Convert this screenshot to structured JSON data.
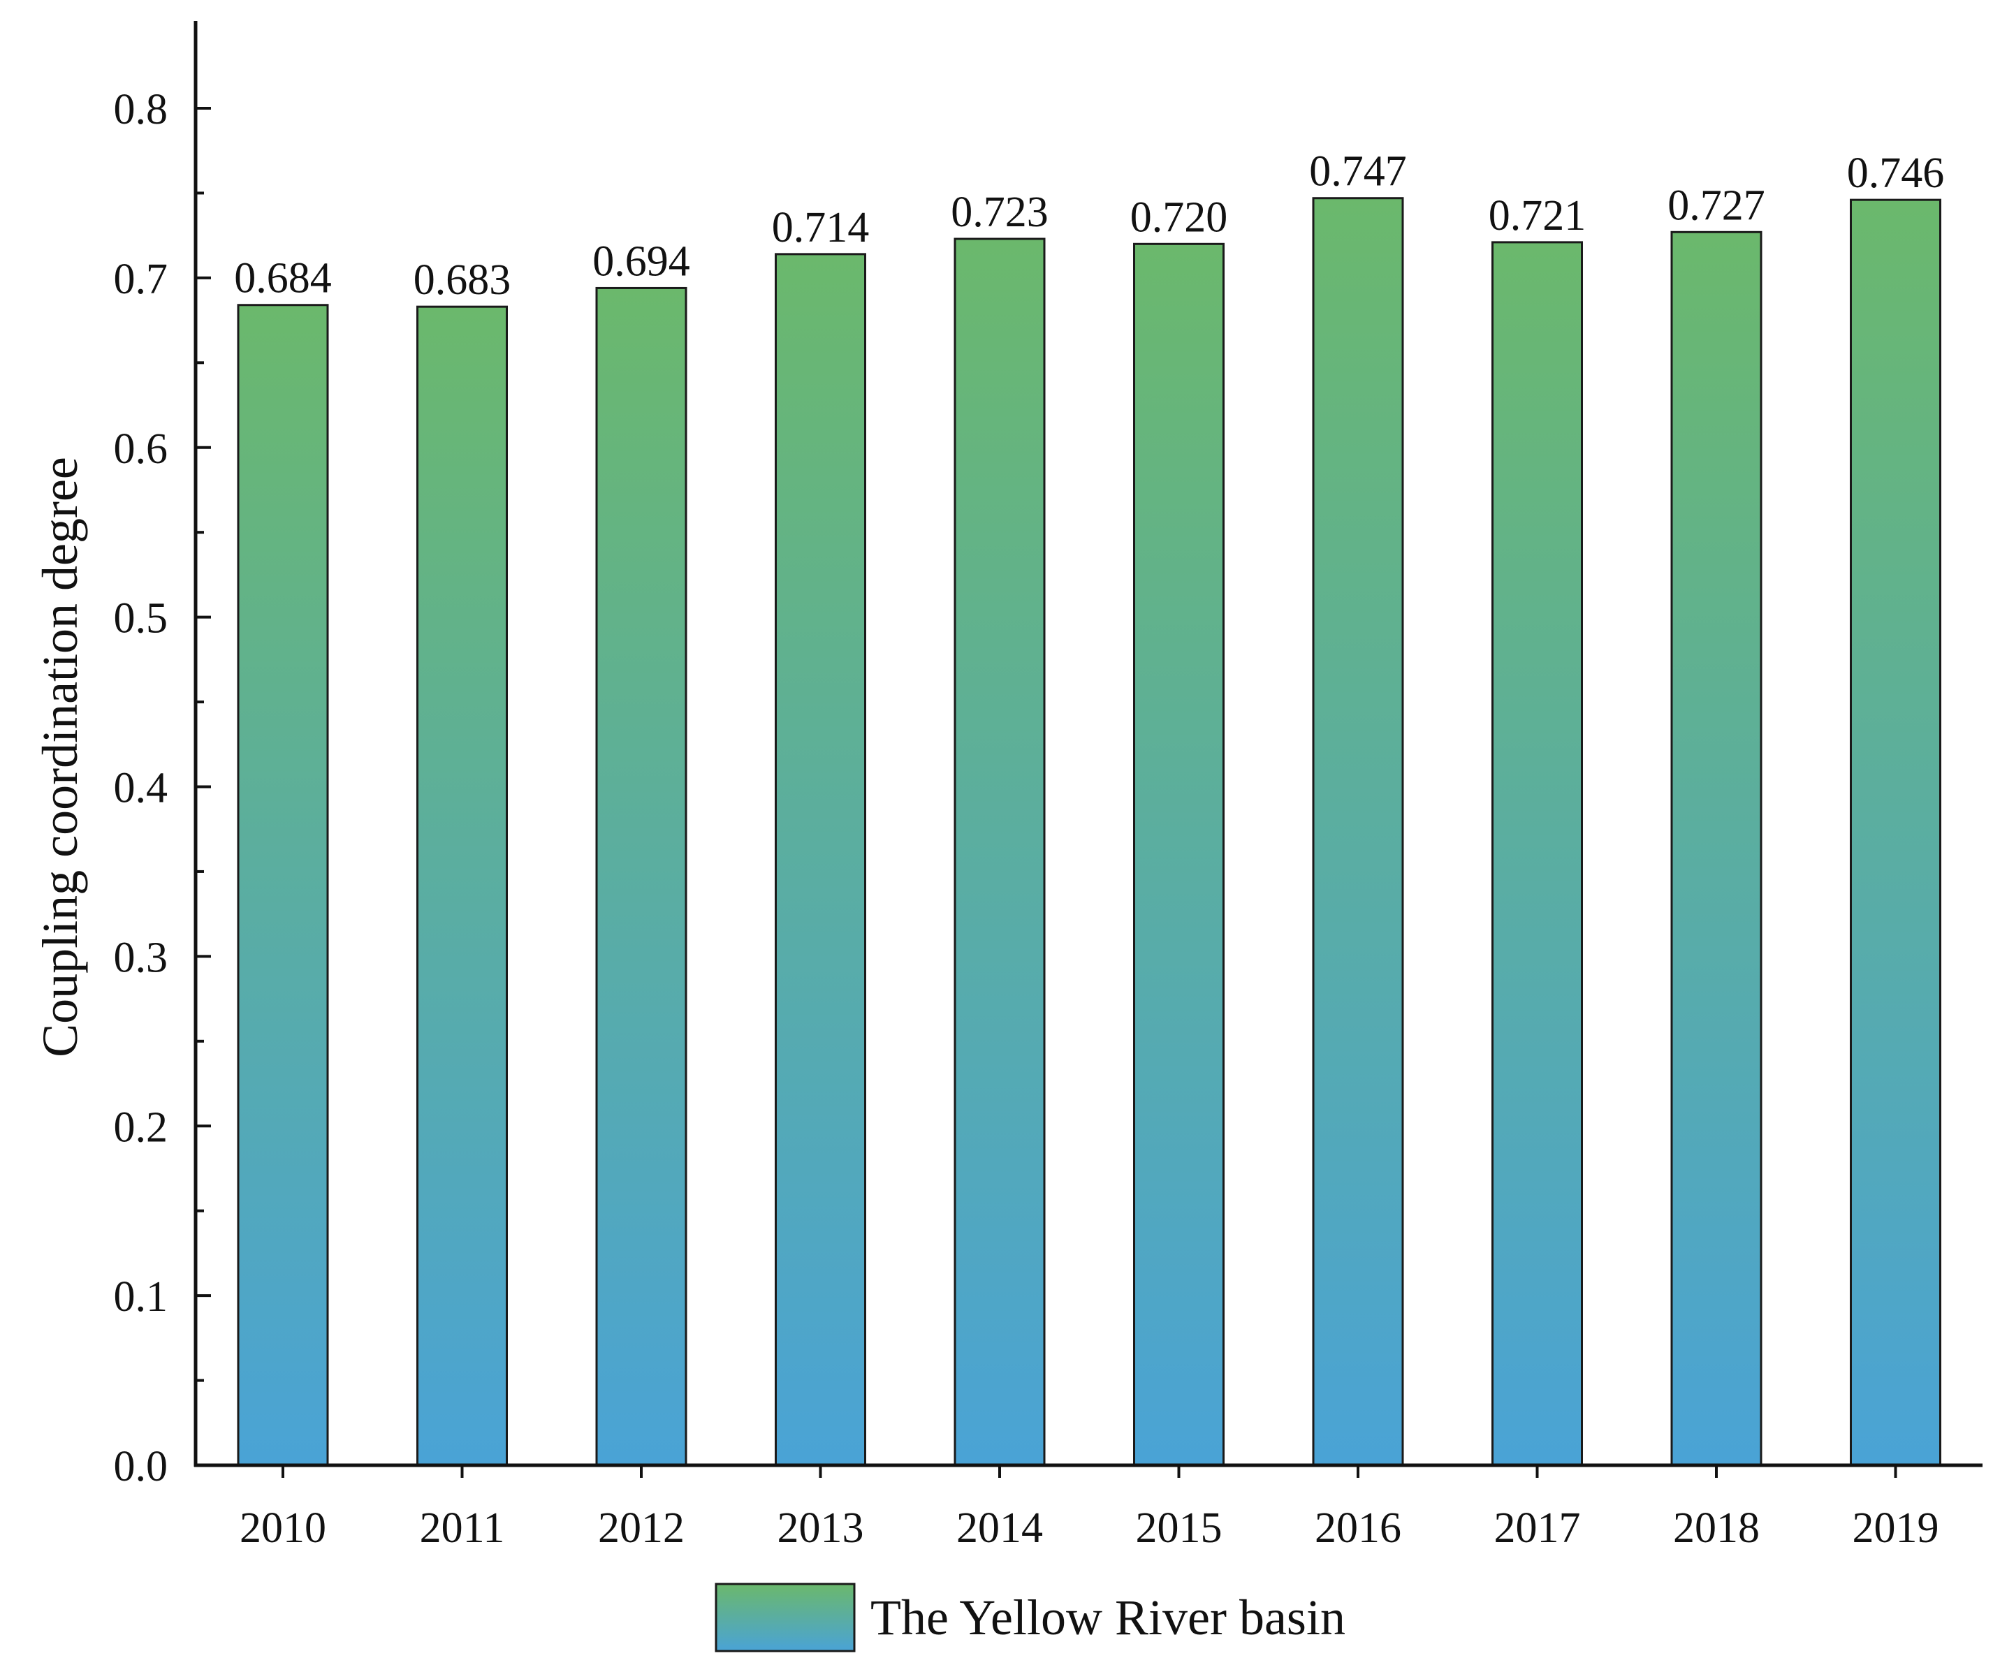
{
  "chart_data": {
    "type": "bar",
    "title": "",
    "xlabel": "",
    "ylabel": "Coupling coordination degree",
    "ylim": [
      0,
      0.85
    ],
    "yticks": [
      "0.0",
      "0.1",
      "0.2",
      "0.3",
      "0.4",
      "0.5",
      "0.6",
      "0.7",
      "0.8"
    ],
    "categories": [
      "2010",
      "2011",
      "2012",
      "2013",
      "2014",
      "2015",
      "2016",
      "2017",
      "2018",
      "2019"
    ],
    "series": [
      {
        "name": "The Yellow River basin",
        "values": [
          0.684,
          0.683,
          0.694,
          0.714,
          0.723,
          0.72,
          0.747,
          0.721,
          0.727,
          0.746
        ],
        "labels": [
          "0.684",
          "0.683",
          "0.694",
          "0.714",
          "0.723",
          "0.720",
          "0.747",
          "0.721",
          "0.727",
          "0.746"
        ]
      }
    ],
    "legend_position": "bottom-center",
    "grid": false,
    "colors": {
      "gradient_top": "#6bb86c",
      "gradient_bottom": "#4aa3d6",
      "axis": "#111111"
    }
  }
}
